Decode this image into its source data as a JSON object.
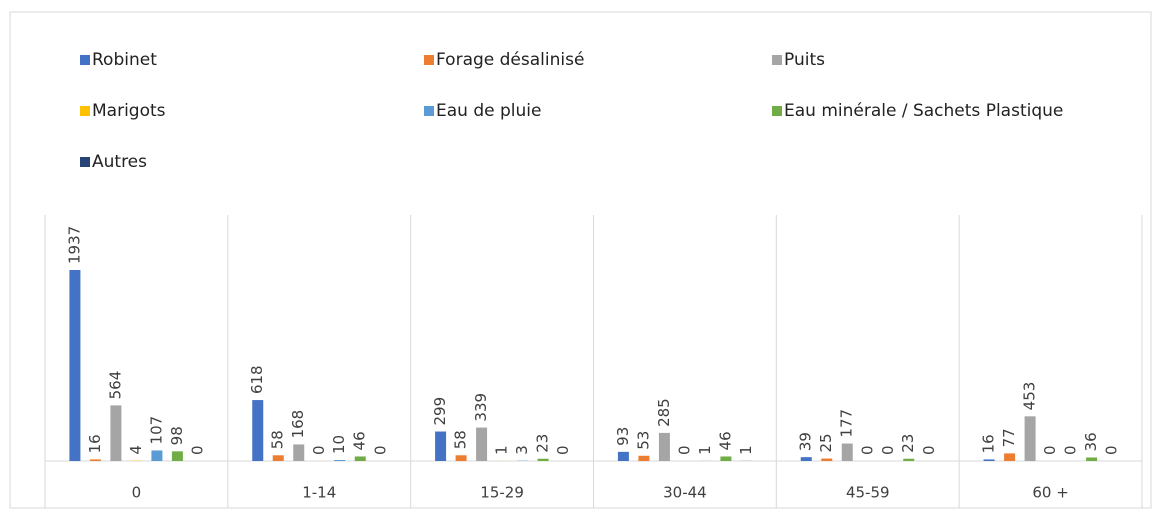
{
  "chart_data": {
    "type": "bar",
    "grouped": true,
    "data_labels": true,
    "label_rotation": -90,
    "categories": [
      "0",
      "1-14",
      "15-29",
      "30-44",
      "45-59",
      "60 +"
    ],
    "series": [
      {
        "name": "Robinet",
        "color": "#4472c4",
        "values": [
          1937,
          618,
          299,
          93,
          39,
          16
        ]
      },
      {
        "name": "Forage désalinisé",
        "color": "#ed7d31",
        "values": [
          16,
          58,
          58,
          53,
          25,
          77
        ]
      },
      {
        "name": "Puits",
        "color": "#a5a5a5",
        "values": [
          564,
          168,
          339,
          285,
          177,
          453
        ]
      },
      {
        "name": "Marigots",
        "color": "#ffc000",
        "values": [
          4,
          0,
          1,
          0,
          0,
          0
        ]
      },
      {
        "name": "Eau de pluie",
        "color": "#5b9bd5",
        "values": [
          107,
          10,
          3,
          1,
          0,
          0
        ]
      },
      {
        "name": "Eau minérale / Sachets Plastique",
        "color": "#70ad47",
        "values": [
          98,
          46,
          23,
          46,
          23,
          36
        ]
      },
      {
        "name": "Autres",
        "color": "#264478",
        "values": [
          0,
          0,
          0,
          1,
          0,
          0
        ]
      }
    ],
    "legend": "top"
  }
}
